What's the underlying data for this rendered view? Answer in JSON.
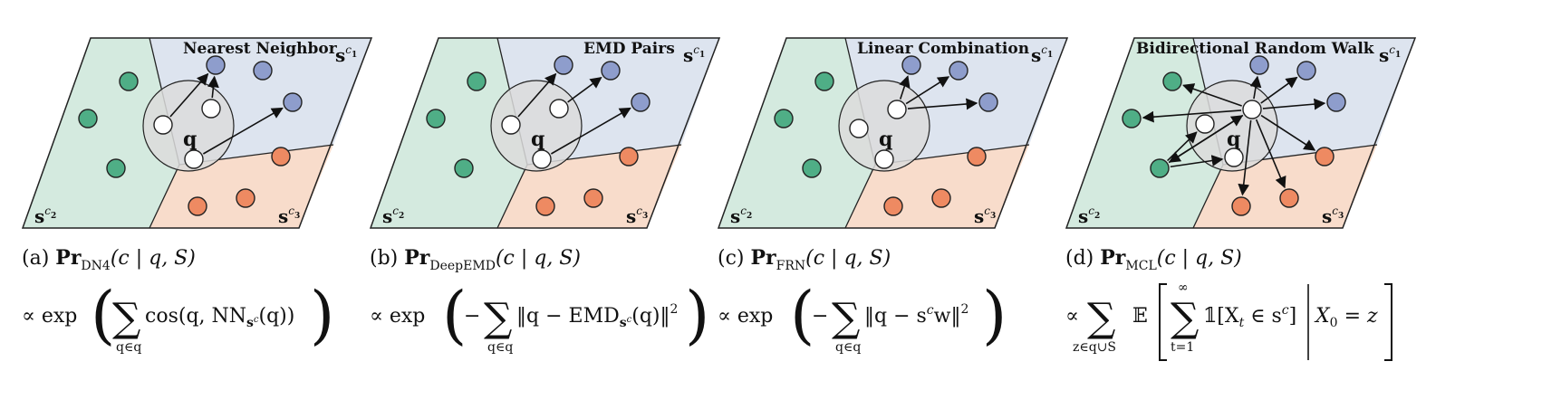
{
  "panels": [
    {
      "id": "a",
      "title": "Nearest Neighbor",
      "caption_prefix": "(a)",
      "caption_pr": "Pr",
      "caption_sub": "DN4",
      "caption_args": "(c | q, S)",
      "formula": {
        "lead": "∝ exp",
        "sum_sign": "∑",
        "sum_under": "q∈q",
        "body": "cos(q, NN",
        "body_sub": "s",
        "body_sub2": "c",
        "body_tail": "(q))"
      }
    },
    {
      "id": "b",
      "title": "EMD Pairs",
      "caption_prefix": "(b)",
      "caption_pr": "Pr",
      "caption_sub": "DeepEMD",
      "caption_args": "(c | q, S)",
      "formula": {
        "lead": "∝ exp",
        "neg": "−",
        "sum_sign": "∑",
        "sum_under": "q∈q",
        "body": "‖q − EMD",
        "body_sub": "s",
        "body_sub2": "c",
        "body_tail": "(q)‖",
        "power": "2"
      }
    },
    {
      "id": "c",
      "title": "Linear Combination",
      "caption_prefix": "(c)",
      "caption_pr": "Pr",
      "caption_sub": "FRN",
      "caption_args": "(c | q, S)",
      "formula": {
        "lead": "∝ exp",
        "neg": "−",
        "sum_sign": "∑",
        "sum_under": "q∈q",
        "body": "‖q − s",
        "body_sup": "c",
        "body_tail": "w‖",
        "power": "2"
      }
    },
    {
      "id": "d",
      "title": "Bidirectional Random Walk",
      "caption_prefix": "(d)",
      "caption_pr": "Pr",
      "caption_sub": "MCL",
      "caption_args": "(c | q, S)",
      "formula": {
        "lead": "∝",
        "sum_sign": "∑",
        "sum_under": "z∈q∪S",
        "expect": "𝔼",
        "inner_sum_sign": "∑",
        "inner_sum_over": "∞",
        "inner_sum_under": "t=1",
        "indicator": "𝟙[X",
        "ind_sub": "t",
        "ind_tail": " ∈ s",
        "ind_sup": "c",
        "ind_close": "]",
        "cond": "X",
        "cond_sub": "0",
        "cond_tail": " = z"
      }
    }
  ],
  "regions": {
    "s1": {
      "base": "s",
      "sup": "c",
      "supsub": "1"
    },
    "s2": {
      "base": "s",
      "sup": "c",
      "supsub": "2"
    },
    "s3": {
      "base": "s",
      "sup": "c",
      "supsub": "3"
    }
  },
  "query_label": "q",
  "colors": {
    "green_region": "#d4eadf",
    "blue_region": "#dde4ef",
    "orange_region": "#f8dccb",
    "query_disc": "#dcdcdc",
    "green_node": "#4fae86",
    "blue_node": "#8e9dcc",
    "orange_node": "#ee8a62",
    "query_node": "#ffffff",
    "stroke": "#222222"
  }
}
